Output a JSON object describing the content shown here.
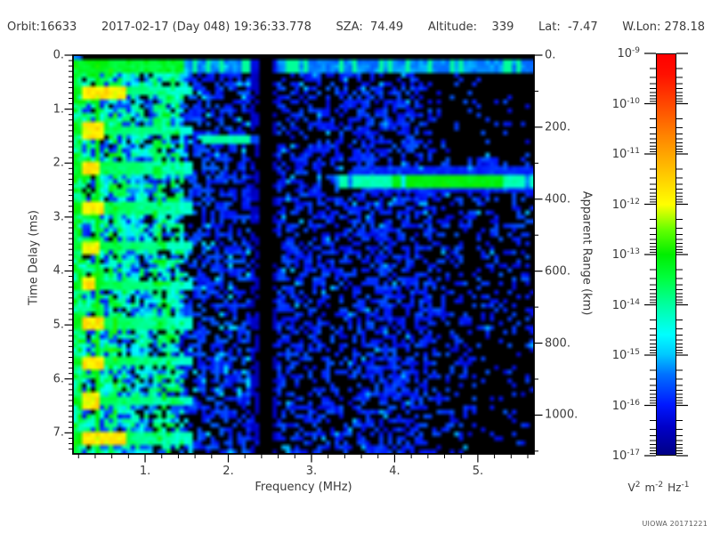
{
  "header": {
    "items": [
      "Orbit:16633",
      "2017-02-17 (Day 048) 19:36:33.778",
      "SZA:  74.49",
      "Altitude:    339",
      "Lat:  -7.47",
      "W.Lon: 278.18"
    ]
  },
  "chart_data": {
    "type": "heatmap",
    "xlabel": "Frequency (MHz)",
    "ylabel": "Time Delay (ms)",
    "y2label": "Apparent Range (km)",
    "x_range_mhz": [
      0.133,
      5.675
    ],
    "x_major_ticks": [
      1,
      2,
      3,
      4,
      5
    ],
    "x_tick_labels": [
      "1.",
      "2.",
      "3.",
      "4.",
      "5."
    ],
    "x_minor_step_mhz": 0.2,
    "y_range_ms": [
      0,
      7.39
    ],
    "y_major_ticks": [
      0,
      1,
      2,
      3,
      4,
      5,
      6,
      7
    ],
    "y_tick_labels": [
      "0.",
      "1.",
      "2.",
      "3.",
      "4.",
      "5.",
      "6.",
      "7."
    ],
    "y_minor_step_ms": 0.1,
    "y2_major_ticks_km": [
      0,
      200,
      400,
      600,
      800,
      1000
    ],
    "y2_tick_labels": [
      "0.",
      "200.",
      "400.",
      "600.",
      "800.",
      "1000."
    ],
    "y2_minor_step_km": 100,
    "km_per_ms": 149.9,
    "colorbar": {
      "mantissa": "10",
      "decade_exponents": [
        "-9",
        "-10",
        "-11",
        "-12",
        "-13",
        "-14",
        "-15",
        "-16",
        "-17"
      ],
      "unit_parts": [
        {
          "base": "V",
          "exp": "2"
        },
        {
          "base": "m",
          "exp": "-2"
        },
        {
          "base": "Hz",
          "exp": "-1"
        }
      ],
      "colormap_stops": [
        [
          0.0,
          "#000085"
        ],
        [
          0.07,
          "#0000c8"
        ],
        [
          0.125,
          "#0018ff"
        ],
        [
          0.2,
          "#0070ff"
        ],
        [
          0.25,
          "#00c8ff"
        ],
        [
          0.3,
          "#00ffff"
        ],
        [
          0.375,
          "#00ffa0"
        ],
        [
          0.44,
          "#00ff40"
        ],
        [
          0.5,
          "#00ee00"
        ],
        [
          0.56,
          "#60ff00"
        ],
        [
          0.625,
          "#ffff00"
        ],
        [
          0.7,
          "#ffc800"
        ],
        [
          0.78,
          "#ff9000"
        ],
        [
          0.875,
          "#ff4800"
        ],
        [
          0.95,
          "#ff1000"
        ],
        [
          1.0,
          "#ff0000"
        ]
      ]
    },
    "features": {
      "direct_signal_line": {
        "delay_ms": 0.2
      },
      "cyclotron_echoes": {
        "first_delay_ms": 0.68,
        "period_ms": 0.715,
        "count": 10,
        "freq_max_mhz": 1.55,
        "hotspot_freq_mhz": [
          0.26,
          0.42
        ]
      },
      "plasma_line_mhz": 0.41,
      "noise_band_max_mhz": 1.45,
      "rfi_notch": {
        "freq_mhz": 2.44,
        "width_mhz": 0.16
      },
      "echo_trace": {
        "delay_ms": 2.32,
        "freq_range_mhz": [
          3.3,
          5.675
        ],
        "apparent_range_km": 348
      },
      "echo_cusp": {
        "delay_ms": 1.55,
        "freq_range_mhz": [
          1.68,
          2.36
        ]
      }
    },
    "noise_seed": 1337
  },
  "footer": {
    "watermark": "UIOWA 20171221"
  }
}
